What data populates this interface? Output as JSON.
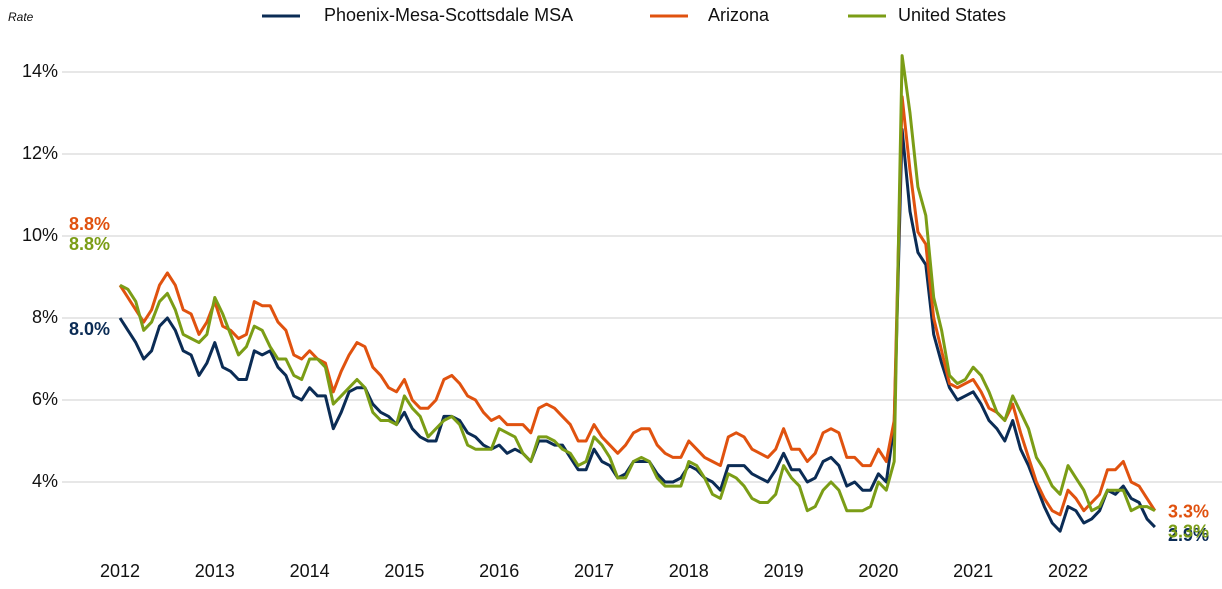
{
  "chart_data": {
    "type": "line",
    "y_label": "Rate",
    "categories": [
      "2012",
      null,
      null,
      null,
      null,
      null,
      null,
      null,
      null,
      null,
      null,
      null,
      "2013",
      null,
      null,
      null,
      null,
      null,
      null,
      null,
      null,
      null,
      null,
      null,
      "2014",
      null,
      null,
      null,
      null,
      null,
      null,
      null,
      null,
      null,
      null,
      null,
      "2015",
      null,
      null,
      null,
      null,
      null,
      null,
      null,
      null,
      null,
      null,
      null,
      "2016",
      null,
      null,
      null,
      null,
      null,
      null,
      null,
      null,
      null,
      null,
      null,
      "2017",
      null,
      null,
      null,
      null,
      null,
      null,
      null,
      null,
      null,
      null,
      null,
      "2018",
      null,
      null,
      null,
      null,
      null,
      null,
      null,
      null,
      null,
      null,
      null,
      "2019",
      null,
      null,
      null,
      null,
      null,
      null,
      null,
      null,
      null,
      null,
      null,
      "2020",
      null,
      null,
      null,
      null,
      null,
      null,
      null,
      null,
      null,
      null,
      null,
      "2021",
      null,
      null,
      null,
      null,
      null,
      null,
      null,
      null,
      null,
      null,
      null,
      "2022",
      null,
      null,
      null,
      null,
      null,
      null,
      null,
      null,
      null,
      null,
      null
    ],
    "ylim": [
      2.4,
      14.8
    ],
    "yticks": [
      {
        "value": 4,
        "label": "4%"
      },
      {
        "value": 6,
        "label": "6%"
      },
      {
        "value": 8,
        "label": "8%"
      },
      {
        "value": 10,
        "label": "10%"
      },
      {
        "value": 12,
        "label": "12%"
      },
      {
        "value": 14,
        "label": "14%"
      }
    ],
    "grid": true,
    "legend": "top",
    "series": [
      {
        "name": "Phoenix-Mesa-Scottsdale MSA",
        "color": "#0b2c55",
        "values": [
          8.0,
          7.7,
          7.4,
          7.0,
          7.2,
          7.8,
          8.0,
          7.7,
          7.2,
          7.1,
          6.6,
          6.9,
          7.4,
          6.8,
          6.7,
          6.5,
          6.5,
          7.2,
          7.1,
          7.2,
          6.8,
          6.6,
          6.1,
          6.0,
          6.3,
          6.1,
          6.1,
          5.3,
          5.7,
          6.2,
          6.3,
          6.3,
          5.9,
          5.7,
          5.6,
          5.4,
          5.7,
          5.3,
          5.1,
          5.0,
          5.0,
          5.6,
          5.6,
          5.5,
          5.2,
          5.1,
          4.9,
          4.8,
          4.9,
          4.7,
          4.8,
          4.7,
          4.5,
          5.0,
          5.0,
          4.9,
          4.9,
          4.6,
          4.3,
          4.3,
          4.8,
          4.5,
          4.4,
          4.1,
          4.2,
          4.5,
          4.5,
          4.5,
          4.2,
          4.0,
          4.0,
          4.1,
          4.4,
          4.3,
          4.1,
          4.0,
          3.8,
          4.4,
          4.4,
          4.4,
          4.2,
          4.1,
          4.0,
          4.3,
          4.7,
          4.3,
          4.3,
          4.0,
          4.1,
          4.5,
          4.6,
          4.4,
          3.9,
          4.0,
          3.8,
          3.8,
          4.2,
          4.0,
          5.4,
          12.6,
          10.6,
          9.6,
          9.3,
          7.6,
          6.9,
          6.3,
          6.0,
          6.1,
          6.2,
          5.9,
          5.5,
          5.3,
          5.0,
          5.5,
          4.8,
          4.4,
          3.9,
          3.4,
          3.0,
          2.8,
          3.4,
          3.3,
          3.0,
          3.1,
          3.3,
          3.8,
          3.7,
          3.9,
          3.6,
          3.5,
          3.1,
          2.9
        ],
        "value_labels": [
          "8.0%",
          null,
          null,
          null,
          null,
          null,
          null,
          null,
          null,
          null,
          null,
          null,
          null,
          null,
          null,
          null,
          null,
          null,
          null,
          null,
          null,
          null,
          null,
          null,
          null,
          null,
          null,
          null,
          null,
          null,
          null,
          null,
          null,
          null,
          null,
          null,
          null,
          null,
          null,
          null,
          null,
          null,
          null,
          null,
          null,
          null,
          null,
          null,
          null,
          null,
          null,
          null,
          null,
          null,
          null,
          null,
          null,
          null,
          null,
          null,
          null,
          null,
          null,
          null,
          null,
          null,
          null,
          null,
          null,
          null,
          null,
          null,
          null,
          null,
          null,
          null,
          null,
          null,
          null,
          null,
          null,
          null,
          null,
          null,
          null,
          null,
          null,
          null,
          null,
          null,
          null,
          null,
          null,
          null,
          null,
          null,
          null,
          null,
          null,
          null,
          null,
          null,
          null,
          null,
          null,
          null,
          null,
          null,
          null,
          null,
          null,
          null,
          null,
          null,
          null,
          null,
          null,
          null,
          null,
          null,
          null,
          null,
          null,
          null,
          null,
          null,
          null,
          null,
          null,
          null,
          null,
          "2.9%"
        ]
      },
      {
        "name": "Arizona",
        "color": "#e0520f",
        "values": [
          8.8,
          8.5,
          8.2,
          7.9,
          8.2,
          8.8,
          9.1,
          8.8,
          8.2,
          8.1,
          7.6,
          7.9,
          8.4,
          7.8,
          7.7,
          7.5,
          7.6,
          8.4,
          8.3,
          8.3,
          7.9,
          7.7,
          7.1,
          7.0,
          7.2,
          7.0,
          6.9,
          6.2,
          6.7,
          7.1,
          7.4,
          7.3,
          6.8,
          6.6,
          6.3,
          6.2,
          6.5,
          6.0,
          5.8,
          5.8,
          6.0,
          6.5,
          6.6,
          6.4,
          6.1,
          6.0,
          5.7,
          5.5,
          5.6,
          5.4,
          5.4,
          5.4,
          5.2,
          5.8,
          5.9,
          5.8,
          5.6,
          5.4,
          5.0,
          5.0,
          5.4,
          5.1,
          4.9,
          4.7,
          4.9,
          5.2,
          5.3,
          5.3,
          4.9,
          4.7,
          4.6,
          4.6,
          5.0,
          4.8,
          4.6,
          4.5,
          4.4,
          5.1,
          5.2,
          5.1,
          4.8,
          4.7,
          4.6,
          4.8,
          5.3,
          4.8,
          4.8,
          4.5,
          4.7,
          5.2,
          5.3,
          5.2,
          4.6,
          4.6,
          4.4,
          4.4,
          4.8,
          4.5,
          5.5,
          13.4,
          11.6,
          10.1,
          9.8,
          8.0,
          7.2,
          6.4,
          6.3,
          6.4,
          6.5,
          6.2,
          5.8,
          5.7,
          5.5,
          5.9,
          5.2,
          4.6,
          4.0,
          3.6,
          3.3,
          3.2,
          3.8,
          3.6,
          3.3,
          3.5,
          3.7,
          4.3,
          4.3,
          4.5,
          4.0,
          3.9,
          3.6,
          3.3
        ],
        "value_labels": [
          "8.8%",
          null,
          null,
          null,
          null,
          null,
          null,
          null,
          null,
          null,
          null,
          null,
          null,
          null,
          null,
          null,
          null,
          null,
          null,
          null,
          null,
          null,
          null,
          null,
          null,
          null,
          null,
          null,
          null,
          null,
          null,
          null,
          null,
          null,
          null,
          null,
          null,
          null,
          null,
          null,
          null,
          null,
          null,
          null,
          null,
          null,
          null,
          null,
          null,
          null,
          null,
          null,
          null,
          null,
          null,
          null,
          null,
          null,
          null,
          null,
          null,
          null,
          null,
          null,
          null,
          null,
          null,
          null,
          null,
          null,
          null,
          null,
          null,
          null,
          null,
          null,
          null,
          null,
          null,
          null,
          null,
          null,
          null,
          null,
          null,
          null,
          null,
          null,
          null,
          null,
          null,
          null,
          null,
          null,
          null,
          null,
          null,
          null,
          null,
          null,
          null,
          null,
          null,
          null,
          null,
          null,
          null,
          null,
          null,
          null,
          null,
          null,
          null,
          null,
          null,
          null,
          null,
          null,
          null,
          null,
          null,
          null,
          null,
          null,
          null,
          null,
          null,
          null,
          null,
          null,
          null,
          "3.3%"
        ]
      },
      {
        "name": "United States",
        "color": "#7b9d16",
        "values": [
          8.8,
          8.7,
          8.4,
          7.7,
          7.9,
          8.4,
          8.6,
          8.2,
          7.6,
          7.5,
          7.4,
          7.6,
          8.5,
          8.1,
          7.6,
          7.1,
          7.3,
          7.8,
          7.7,
          7.3,
          7.0,
          7.0,
          6.6,
          6.5,
          7.0,
          7.0,
          6.8,
          5.9,
          6.1,
          6.3,
          6.5,
          6.3,
          5.7,
          5.5,
          5.5,
          5.4,
          6.1,
          5.8,
          5.6,
          5.1,
          5.3,
          5.5,
          5.6,
          5.4,
          4.9,
          4.8,
          4.8,
          4.8,
          5.3,
          5.2,
          5.1,
          4.7,
          4.5,
          5.1,
          5.1,
          5.0,
          4.8,
          4.7,
          4.4,
          4.5,
          5.1,
          4.9,
          4.6,
          4.1,
          4.1,
          4.5,
          4.6,
          4.5,
          4.1,
          3.9,
          3.9,
          3.9,
          4.5,
          4.4,
          4.1,
          3.7,
          3.6,
          4.2,
          4.1,
          3.9,
          3.6,
          3.5,
          3.5,
          3.7,
          4.4,
          4.1,
          3.9,
          3.3,
          3.4,
          3.8,
          4.0,
          3.8,
          3.3,
          3.3,
          3.3,
          3.4,
          4.0,
          3.8,
          4.5,
          14.4,
          13.0,
          11.2,
          10.5,
          8.5,
          7.7,
          6.6,
          6.4,
          6.5,
          6.8,
          6.6,
          6.2,
          5.7,
          5.5,
          6.1,
          5.7,
          5.3,
          4.6,
          4.3,
          3.9,
          3.7,
          4.4,
          4.1,
          3.8,
          3.3,
          3.4,
          3.8,
          3.8,
          3.8,
          3.3,
          3.4,
          3.4,
          3.3
        ],
        "value_labels": [
          "8.8%",
          null,
          null,
          null,
          null,
          null,
          null,
          null,
          null,
          null,
          null,
          null,
          null,
          null,
          null,
          null,
          null,
          null,
          null,
          null,
          null,
          null,
          null,
          null,
          null,
          null,
          null,
          null,
          null,
          null,
          null,
          null,
          null,
          null,
          null,
          null,
          null,
          null,
          null,
          null,
          null,
          null,
          null,
          null,
          null,
          null,
          null,
          null,
          null,
          null,
          null,
          null,
          null,
          null,
          null,
          null,
          null,
          null,
          null,
          null,
          null,
          null,
          null,
          null,
          null,
          null,
          null,
          null,
          null,
          null,
          null,
          null,
          null,
          null,
          null,
          null,
          null,
          null,
          null,
          null,
          null,
          null,
          null,
          null,
          null,
          null,
          null,
          null,
          null,
          null,
          null,
          null,
          null,
          null,
          null,
          null,
          null,
          null,
          null,
          null,
          null,
          null,
          null,
          null,
          null,
          null,
          null,
          null,
          null,
          null,
          null,
          null,
          null,
          null,
          null,
          null,
          null,
          null,
          null,
          null,
          null,
          null,
          null,
          null,
          null,
          null,
          null,
          null,
          null,
          null,
          null,
          "3.3%"
        ]
      }
    ]
  }
}
